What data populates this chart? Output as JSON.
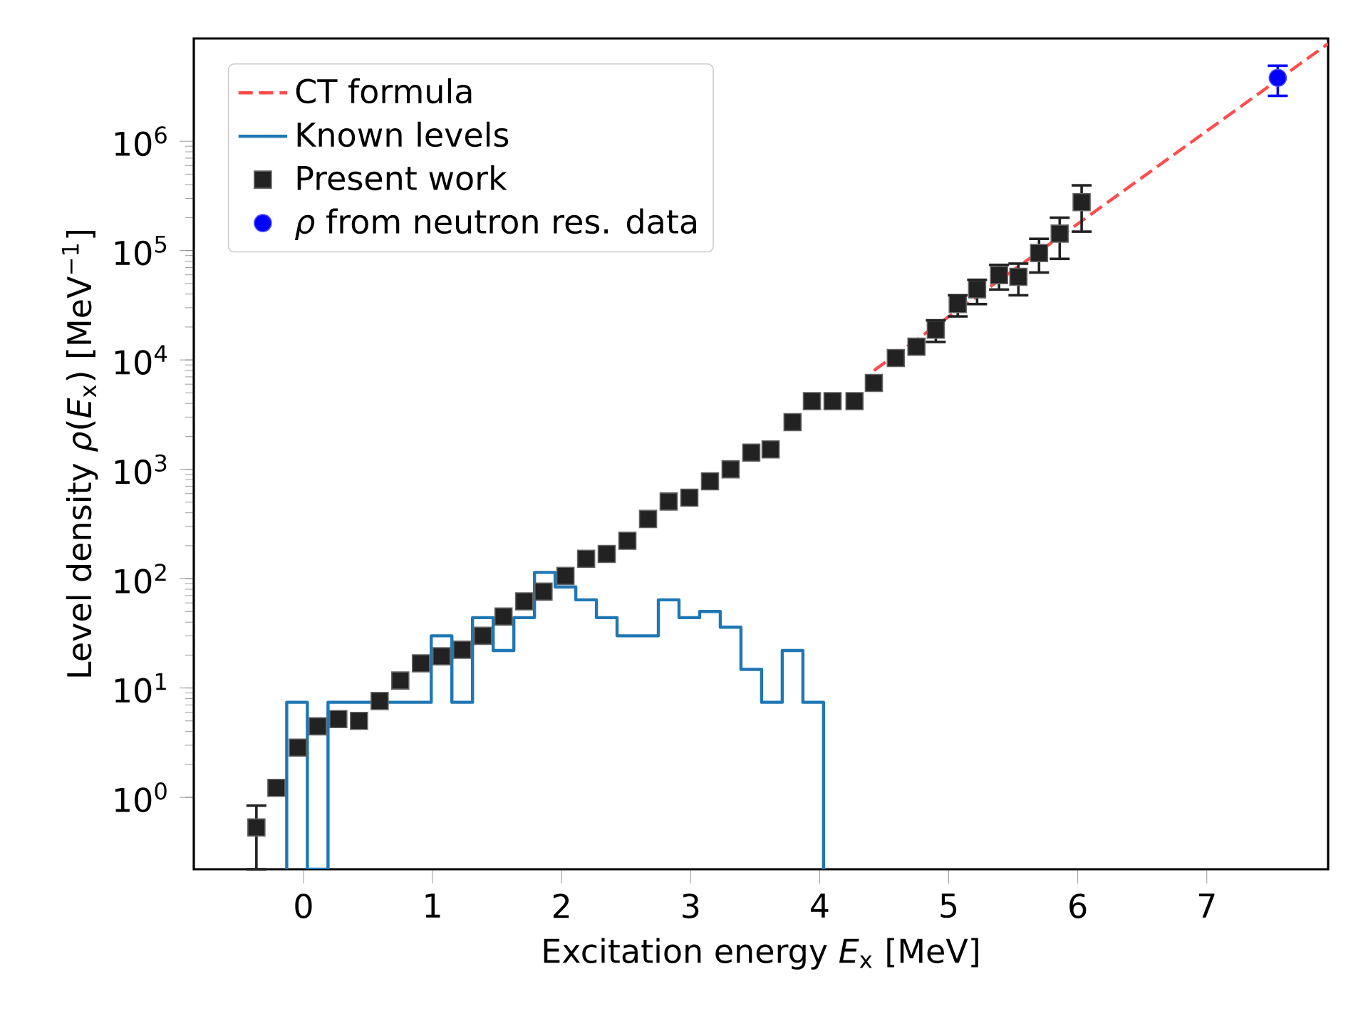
{
  "chart_data": {
    "type": "scatter",
    "xlabel": "Excitation energy *E*$_{x}$ [MeV]",
    "ylabel": "Level density *ρ*(*E*$_{x}$) [MeV$^{−1}$]",
    "log": "y",
    "legend": "top left",
    "xlim": [
      -0.85,
      7.94
    ],
    "ylim": [
      0.22,
      8700000
    ],
    "xticks": [
      0,
      1,
      2,
      3,
      4,
      5,
      6,
      7
    ],
    "yticks": [
      {
        "value": 1,
        "label": "10$^{0}$"
      },
      {
        "value": 10,
        "label": "10$^{1}$"
      },
      {
        "value": 100,
        "label": "10$^{2}$"
      },
      {
        "value": 1000,
        "label": "10$^{3}$"
      },
      {
        "value": 10000,
        "label": "10$^{4}$"
      },
      {
        "value": 100000,
        "label": "10$^{5}$"
      },
      {
        "value": 1000000,
        "label": "10$^{6}$"
      }
    ],
    "series": [
      {
        "name": "CT formula",
        "type": "line",
        "line_style": "dashed",
        "color": "#ff4d4d",
        "x": [
          4.42,
          7.94
        ],
        "values": [
          8000,
          7800000
        ]
      },
      {
        "name": "Known levels",
        "type": "histogram",
        "color": "#1f77b4",
        "bins": [
          -0.13,
          0.03,
          0.19,
          0.35,
          0.51,
          0.67,
          0.83,
          0.99,
          1.15,
          1.31,
          1.47,
          1.63,
          1.79,
          1.95,
          2.11,
          2.27,
          2.43,
          2.59,
          2.75,
          2.91,
          3.07,
          3.23,
          3.39,
          3.55,
          3.71,
          3.87,
          4.03
        ],
        "values": [
          7.4,
          null,
          7.4,
          7.4,
          7.4,
          7.4,
          7.4,
          30,
          7.4,
          44,
          22,
          44,
          114,
          84,
          64,
          44,
          30,
          30,
          64,
          44,
          50,
          36,
          14.8,
          7.4,
          22,
          7.4
        ]
      },
      {
        "name": "Present work",
        "marker": "square",
        "color": "#222222",
        "x": [
          -0.365,
          -0.21,
          -0.044,
          0.11,
          0.27,
          0.43,
          0.59,
          0.75,
          0.91,
          1.07,
          1.23,
          1.39,
          1.55,
          1.71,
          1.86,
          2.03,
          2.19,
          2.35,
          2.51,
          2.67,
          2.83,
          2.99,
          3.15,
          3.31,
          3.47,
          3.62,
          3.79,
          3.94,
          4.1,
          4.27,
          4.42,
          4.59,
          4.75,
          4.9,
          5.07,
          5.22,
          5.39,
          5.54,
          5.7,
          5.86,
          6.03
        ],
        "values": [
          0.53,
          1.22,
          2.85,
          4.46,
          5.2,
          5.0,
          7.6,
          11.7,
          16.8,
          19.5,
          22.4,
          30,
          45,
          62,
          76,
          106,
          152,
          168,
          222,
          351,
          507,
          550,
          777,
          1000,
          1420,
          1520,
          2700,
          4200,
          4200,
          4200,
          6150,
          10400,
          13200,
          18900,
          32400,
          44200,
          59600,
          57600,
          95000,
          143000,
          277000
        ],
        "errors": [
          [
            0.22,
            0.84
          ],
          null,
          null,
          null,
          null,
          null,
          null,
          null,
          null,
          null,
          null,
          null,
          null,
          null,
          null,
          null,
          null,
          null,
          null,
          null,
          null,
          null,
          null,
          null,
          null,
          null,
          null,
          null,
          null,
          null,
          null,
          null,
          null,
          [
            14600,
            23000
          ],
          [
            25000,
            39000
          ],
          [
            32400,
            54000
          ],
          [
            44000,
            74000
          ],
          [
            39000,
            76000
          ],
          [
            63000,
            128000
          ],
          [
            84000,
            200000
          ],
          [
            149000,
            395000
          ]
        ]
      },
      {
        "name": "*ρ* from neutron res. data",
        "marker": "circle",
        "color": "#0000ff",
        "x": [
          7.55
        ],
        "values": [
          3800000
        ],
        "errors": [
          [
            2600000,
            4900000
          ]
        ]
      }
    ]
  }
}
